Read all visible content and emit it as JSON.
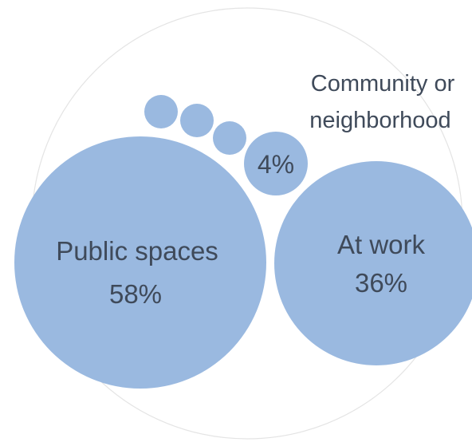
{
  "chart_data": {
    "type": "bubble",
    "title": "",
    "color": "#9ab9e0",
    "outline_color": "#e4e4e4",
    "label_color": "#3f4a5a",
    "bubbles": [
      {
        "label": "Public spaces",
        "value_label": "58%",
        "value": 58
      },
      {
        "label": "At work",
        "value_label": "36%",
        "value": 36
      },
      {
        "label": "Community or neighborhood",
        "label_lines": [
          "Community or",
          "neighborhood"
        ],
        "value_label": "4%",
        "value": 4
      },
      {
        "label": "",
        "value_label": "",
        "value": null
      },
      {
        "label": "",
        "value_label": "",
        "value": null
      },
      {
        "label": "",
        "value_label": "",
        "value": null
      }
    ]
  }
}
